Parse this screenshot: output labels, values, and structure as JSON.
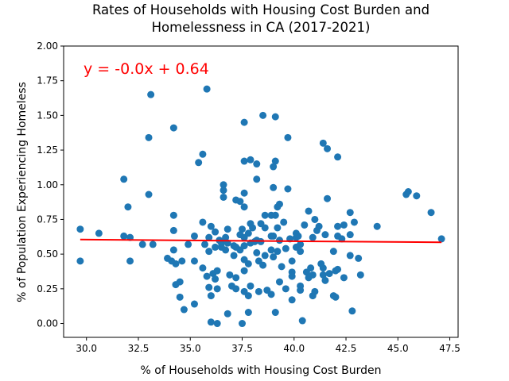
{
  "chart_data": {
    "type": "scatter",
    "title_lines": [
      "Rates of Households with Housing Cost Burden and",
      "Homelessness in CA (2017-2021)"
    ],
    "xlabel": "% of Households with Housing Cost Burden",
    "ylabel": "% of Population Experiencing Homeless",
    "xlim": [
      28.9,
      47.9
    ],
    "ylim": [
      -0.1,
      2.0
    ],
    "x_ticks": [
      "30.0",
      "32.5",
      "35.0",
      "37.5",
      "40.0",
      "42.5",
      "45.0",
      "47.5"
    ],
    "x_tick_values": [
      30.0,
      32.5,
      35.0,
      37.5,
      40.0,
      42.5,
      45.0,
      47.5
    ],
    "y_ticks": [
      "0.00",
      "0.25",
      "0.50",
      "0.75",
      "1.00",
      "1.25",
      "1.50",
      "1.75",
      "2.00"
    ],
    "y_tick_values": [
      0.0,
      0.25,
      0.5,
      0.75,
      1.0,
      1.25,
      1.5,
      1.75,
      2.0
    ],
    "grid": false,
    "annotation": {
      "text": "y = -0.0x + 0.64",
      "color": "#ff0000"
    },
    "regression": {
      "x": [
        29.7,
        47.1
      ],
      "y": [
        0.605,
        0.585
      ],
      "color": "#ff0000"
    },
    "point_color": "#1f77b4",
    "points": [
      [
        29.7,
        0.68
      ],
      [
        29.7,
        0.45
      ],
      [
        30.6,
        0.65
      ],
      [
        31.8,
        1.04
      ],
      [
        31.8,
        0.63
      ],
      [
        32.0,
        0.84
      ],
      [
        32.1,
        0.62
      ],
      [
        32.1,
        0.45
      ],
      [
        32.7,
        0.57
      ],
      [
        33.0,
        1.34
      ],
      [
        33.1,
        1.65
      ],
      [
        33.0,
        0.93
      ],
      [
        33.2,
        0.57
      ],
      [
        33.9,
        0.47
      ],
      [
        34.1,
        0.45
      ],
      [
        34.2,
        1.41
      ],
      [
        34.2,
        0.78
      ],
      [
        34.2,
        0.67
      ],
      [
        34.2,
        0.53
      ],
      [
        34.3,
        0.43
      ],
      [
        34.3,
        0.28
      ],
      [
        34.5,
        0.3
      ],
      [
        34.5,
        0.19
      ],
      [
        34.6,
        0.45
      ],
      [
        34.7,
        0.1
      ],
      [
        34.9,
        0.57
      ],
      [
        35.2,
        0.63
      ],
      [
        35.2,
        0.45
      ],
      [
        35.2,
        0.14
      ],
      [
        35.4,
        1.16
      ],
      [
        35.6,
        1.22
      ],
      [
        35.6,
        0.4
      ],
      [
        35.6,
        0.73
      ],
      [
        35.7,
        0.57
      ],
      [
        35.8,
        1.69
      ],
      [
        35.8,
        0.34
      ],
      [
        35.9,
        0.62
      ],
      [
        35.9,
        0.52
      ],
      [
        35.9,
        0.26
      ],
      [
        36.0,
        0.7
      ],
      [
        36.0,
        0.2
      ],
      [
        36.0,
        0.01
      ],
      [
        36.1,
        0.36
      ],
      [
        36.2,
        0.66
      ],
      [
        36.2,
        0.55
      ],
      [
        36.2,
        0.32
      ],
      [
        36.3,
        0.38
      ],
      [
        36.3,
        0.25
      ],
      [
        36.3,
        0.0
      ],
      [
        36.4,
        0.6
      ],
      [
        36.5,
        0.55
      ],
      [
        36.5,
        0.58
      ],
      [
        36.6,
        1.0
      ],
      [
        36.6,
        0.96
      ],
      [
        36.6,
        0.91
      ],
      [
        36.7,
        0.53
      ],
      [
        36.7,
        0.62
      ],
      [
        36.8,
        0.68
      ],
      [
        36.8,
        0.58
      ],
      [
        36.8,
        0.07
      ],
      [
        36.9,
        0.35
      ],
      [
        37.0,
        0.27
      ],
      [
        37.1,
        0.56
      ],
      [
        37.1,
        0.49
      ],
      [
        37.2,
        0.89
      ],
      [
        37.2,
        0.55
      ],
      [
        37.2,
        0.33
      ],
      [
        37.2,
        0.25
      ],
      [
        37.4,
        0.88
      ],
      [
        37.4,
        0.64
      ],
      [
        37.4,
        0.53
      ],
      [
        37.5,
        0.68
      ],
      [
        37.5,
        0.0
      ],
      [
        37.6,
        1.45
      ],
      [
        37.6,
        1.17
      ],
      [
        37.6,
        0.94
      ],
      [
        37.6,
        0.84
      ],
      [
        37.6,
        0.62
      ],
      [
        37.6,
        0.56
      ],
      [
        37.6,
        0.46
      ],
      [
        37.6,
        0.38
      ],
      [
        37.6,
        0.23
      ],
      [
        37.8,
        0.65
      ],
      [
        37.8,
        0.43
      ],
      [
        37.8,
        0.2
      ],
      [
        37.8,
        0.08
      ],
      [
        37.9,
        1.18
      ],
      [
        37.9,
        0.72
      ],
      [
        37.9,
        0.58
      ],
      [
        37.9,
        0.27
      ],
      [
        38.0,
        0.69
      ],
      [
        38.1,
        0.59
      ],
      [
        38.2,
        1.04
      ],
      [
        38.2,
        1.15
      ],
      [
        38.2,
        0.6
      ],
      [
        38.2,
        0.51
      ],
      [
        38.3,
        0.45
      ],
      [
        38.3,
        0.23
      ],
      [
        38.4,
        0.72
      ],
      [
        38.4,
        0.59
      ],
      [
        38.5,
        1.5
      ],
      [
        38.5,
        0.42
      ],
      [
        38.6,
        0.49
      ],
      [
        38.6,
        0.78
      ],
      [
        38.6,
        0.69
      ],
      [
        38.7,
        0.24
      ],
      [
        38.9,
        0.78
      ],
      [
        38.9,
        0.63
      ],
      [
        38.9,
        0.53
      ],
      [
        38.9,
        0.21
      ],
      [
        39.0,
        1.13
      ],
      [
        39.0,
        0.98
      ],
      [
        39.0,
        0.63
      ],
      [
        39.0,
        0.48
      ],
      [
        39.1,
        1.49
      ],
      [
        39.1,
        1.17
      ],
      [
        39.1,
        0.08
      ],
      [
        39.1,
        0.78
      ],
      [
        39.2,
        0.84
      ],
      [
        39.2,
        0.69
      ],
      [
        39.2,
        0.52
      ],
      [
        39.3,
        0.86
      ],
      [
        39.3,
        0.6
      ],
      [
        39.3,
        0.3
      ],
      [
        39.4,
        0.41
      ],
      [
        39.5,
        0.73
      ],
      [
        39.6,
        0.54
      ],
      [
        39.6,
        0.25
      ],
      [
        39.7,
        1.34
      ],
      [
        39.7,
        0.97
      ],
      [
        39.8,
        0.61
      ],
      [
        39.9,
        0.45
      ],
      [
        39.9,
        0.37
      ],
      [
        39.9,
        0.34
      ],
      [
        39.9,
        0.17
      ],
      [
        40.1,
        0.65
      ],
      [
        40.1,
        0.62
      ],
      [
        40.1,
        0.55
      ],
      [
        40.2,
        0.63
      ],
      [
        40.3,
        0.57
      ],
      [
        40.3,
        0.52
      ],
      [
        40.3,
        0.27
      ],
      [
        40.3,
        0.24
      ],
      [
        40.4,
        0.02
      ],
      [
        40.5,
        0.71
      ],
      [
        40.6,
        0.37
      ],
      [
        40.7,
        0.81
      ],
      [
        40.7,
        0.33
      ],
      [
        40.8,
        0.4
      ],
      [
        40.9,
        0.62
      ],
      [
        40.9,
        0.35
      ],
      [
        40.9,
        0.2
      ],
      [
        41.0,
        0.23
      ],
      [
        41.0,
        0.75
      ],
      [
        41.1,
        0.67
      ],
      [
        41.2,
        0.7
      ],
      [
        41.3,
        0.43
      ],
      [
        41.4,
        1.3
      ],
      [
        41.4,
        0.4
      ],
      [
        41.4,
        0.35
      ],
      [
        41.5,
        0.64
      ],
      [
        41.5,
        0.31
      ],
      [
        41.6,
        1.26
      ],
      [
        41.6,
        0.9
      ],
      [
        41.7,
        0.36
      ],
      [
        41.9,
        0.52
      ],
      [
        41.9,
        0.2
      ],
      [
        42.0,
        0.19
      ],
      [
        42.0,
        0.38
      ],
      [
        42.1,
        1.2
      ],
      [
        42.1,
        0.7
      ],
      [
        42.1,
        0.63
      ],
      [
        42.1,
        0.39
      ],
      [
        42.3,
        0.61
      ],
      [
        42.4,
        0.71
      ],
      [
        42.4,
        0.33
      ],
      [
        42.7,
        0.8
      ],
      [
        42.7,
        0.49
      ],
      [
        42.7,
        0.64
      ],
      [
        42.8,
        0.09
      ],
      [
        42.9,
        0.73
      ],
      [
        43.1,
        0.47
      ],
      [
        43.2,
        0.35
      ],
      [
        44.0,
        0.7
      ],
      [
        45.4,
        0.93
      ],
      [
        45.5,
        0.95
      ],
      [
        45.9,
        0.92
      ],
      [
        46.6,
        0.8
      ],
      [
        47.1,
        0.61
      ]
    ]
  }
}
